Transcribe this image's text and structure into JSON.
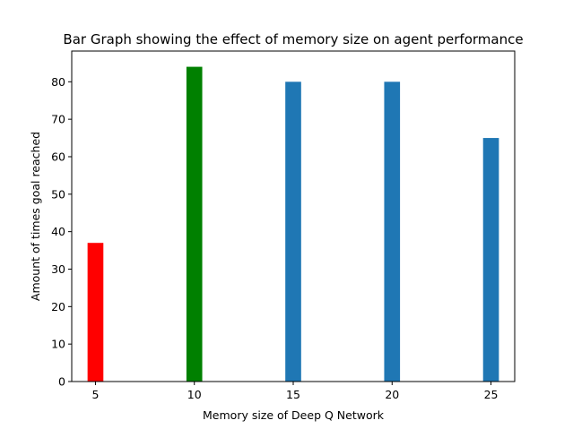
{
  "chart_data": {
    "type": "bar",
    "title": "Bar Graph showing the effect of memory size on agent performance",
    "xlabel": "Memory size of Deep Q Network",
    "ylabel": "Amount of times goal reached",
    "x": [
      5,
      10,
      15,
      20,
      25
    ],
    "values": [
      37,
      84,
      80,
      80,
      65
    ],
    "bar_colors": [
      "#ff0000",
      "#008000",
      "#1f77b4",
      "#1f77b4",
      "#1f77b4"
    ],
    "bar_width": 0.8,
    "xlim": [
      3.8,
      26.2
    ],
    "ylim": [
      0,
      88.2
    ],
    "xticks": [
      5,
      10,
      15,
      20,
      25
    ],
    "yticks": [
      0,
      10,
      20,
      30,
      40,
      50,
      60,
      70,
      80
    ],
    "grid": false,
    "legend": null
  }
}
